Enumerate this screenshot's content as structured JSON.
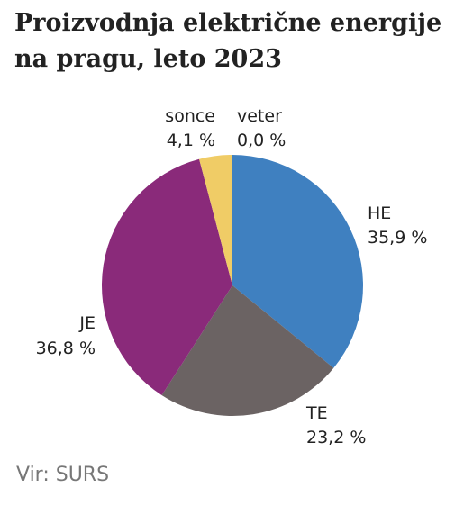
{
  "chart_data": {
    "type": "pie",
    "title": "Proizvodnja električne energije na pragu, leto 2023",
    "slices": [
      {
        "label": "HE",
        "value": 35.9,
        "value_text": "35,9 %",
        "color": "#3f80c0"
      },
      {
        "label": "TE",
        "value": 23.2,
        "value_text": "23,2 %",
        "color": "#6b6363"
      },
      {
        "label": "JE",
        "value": 36.8,
        "value_text": "36,8 %",
        "color": "#8a2a7a"
      },
      {
        "label": "sonce",
        "value": 4.1,
        "value_text": "4,1 %",
        "color": "#f0cc66"
      },
      {
        "label": "veter",
        "value": 0.0,
        "value_text": "0,0 %",
        "color": "#9fc65a"
      }
    ]
  },
  "source": "Vir: SURS"
}
